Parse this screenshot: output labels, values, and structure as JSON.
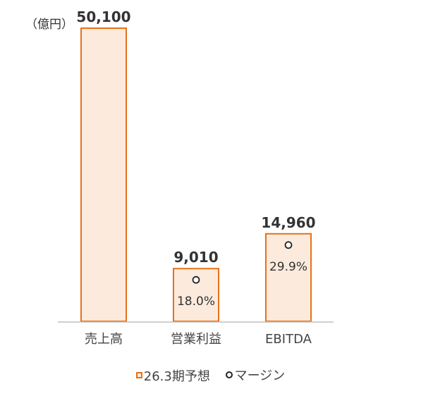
{
  "chart_data": {
    "type": "bar",
    "unit_label": "（億円）",
    "categories": [
      "売上高",
      "営業利益",
      "EBITDA"
    ],
    "series": [
      {
        "name": "26.3期予想",
        "values": [
          50100,
          9010,
          14960
        ],
        "value_labels": [
          "50,100",
          "9,010",
          "14,960"
        ]
      },
      {
        "name": "マージン",
        "values": [
          null,
          18.0,
          29.9
        ],
        "value_labels": [
          "",
          "18.0%",
          "29.9%"
        ]
      }
    ],
    "ylim": [
      0,
      50100
    ],
    "grid": false,
    "legend_position": "bottom"
  },
  "colors": {
    "bar_fill": "#FCEBDD",
    "bar_stroke": "#E8701A",
    "marker": "#222222",
    "axis": "#BFBFBF",
    "text": "#333333"
  }
}
